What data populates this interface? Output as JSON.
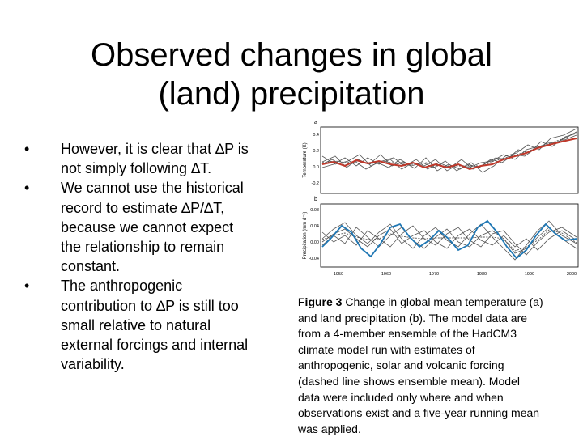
{
  "slide": {
    "title_line1": "Observed changes in global",
    "title_line2": "(land) precipitation",
    "bullets": [
      {
        "marker": "•",
        "lines": [
          "However, it is clear that ∆P is",
          "not simply following ∆T."
        ]
      },
      {
        "marker": "•",
        "lines": [
          "We cannot use the historical",
          "record to estimate ∆P/∆T,",
          "because we cannot expect",
          "the relationship to remain",
          "constant."
        ]
      },
      {
        "marker": "•",
        "lines": [
          "The anthropogenic",
          "contribution to ∆P is still too",
          "small relative to natural",
          "external forcings and internal",
          "variability."
        ]
      }
    ]
  },
  "figure": {
    "panel_a": {
      "letter": "a",
      "ylabel": "Temperature (K)",
      "yticks": [
        "0.4",
        "0.2",
        "0.0",
        "-0.2"
      ]
    },
    "panel_b": {
      "letter": "b",
      "ylabel": "Precipitation (mm d⁻¹)",
      "yticks": [
        "0.08",
        "0.04",
        "0.00",
        "-0.04"
      ]
    },
    "xticks": [
      "1950",
      "1960",
      "1970",
      "1980",
      "1990",
      "2000"
    ]
  },
  "caption": {
    "label": "Figure 3",
    "lines": [
      " Change in global mean temperature (a)",
      "and land precipitation (b). The model data are",
      "from a 4-member ensemble of the HadCM3",
      "climate model run with estimates of",
      "anthropogenic, solar and volcanic forcing",
      "(dashed line shows ensemble mean). Model",
      "data were included only where and when",
      "observations exist and a five-year running mean",
      "was applied."
    ]
  },
  "colors": {
    "temperature_observed": "#c0392b",
    "precipitation_observed": "#1f77b4",
    "model_members": "#555555"
  }
}
